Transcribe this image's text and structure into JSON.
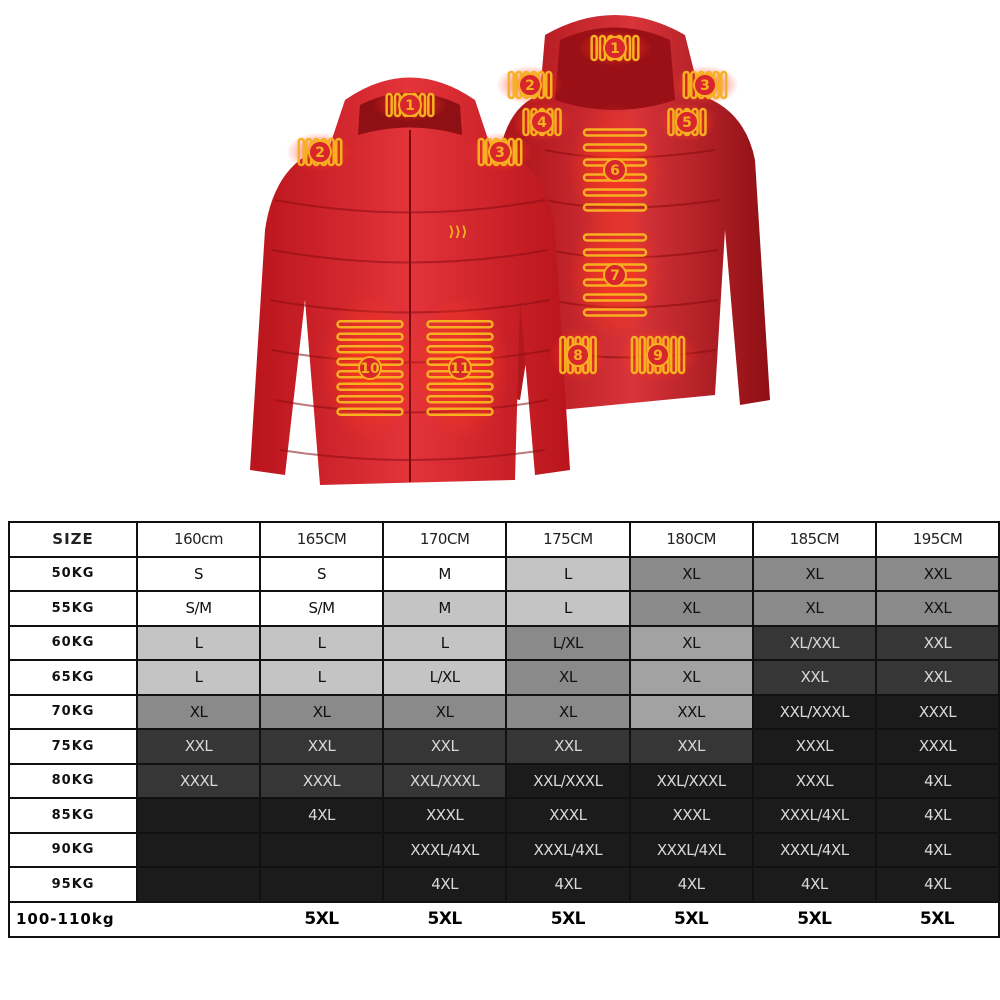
{
  "product_image": {
    "front_zone_labels": [
      "1",
      "2",
      "3",
      "10",
      "11"
    ],
    "back_zone_labels": [
      "1",
      "2",
      "3",
      "4",
      "5",
      "6",
      "7",
      "8",
      "9"
    ],
    "colors": {
      "jacket": "#d8262c",
      "heating_pad": "#f7b021",
      "pad_glow": "#ff3a1a"
    }
  },
  "size_chart": {
    "corner_label": "SIZE",
    "heights": [
      "160cm",
      "165CM",
      "170CM",
      "175CM",
      "180CM",
      "185CM",
      "195CM"
    ],
    "rows": [
      {
        "weight": "50KG",
        "sizes": [
          "S",
          "S",
          "M",
          "L",
          "XL",
          "XL",
          "XXL"
        ],
        "shades": [
          "w",
          "w",
          "w",
          "l",
          "m",
          "m",
          "m"
        ]
      },
      {
        "weight": "55KG",
        "sizes": [
          "S/M",
          "S/M",
          "M",
          "L",
          "XL",
          "XL",
          "XXL"
        ],
        "shades": [
          "w",
          "w",
          "l",
          "l",
          "m",
          "m",
          "m"
        ]
      },
      {
        "weight": "60KG",
        "sizes": [
          "L",
          "L",
          "L",
          "L/XL",
          "XL",
          "XL/XXL",
          "XXL"
        ],
        "shades": [
          "l",
          "l",
          "l",
          "m",
          "m2",
          "d",
          "d"
        ]
      },
      {
        "weight": "65KG",
        "sizes": [
          "L",
          "L",
          "L/XL",
          "XL",
          "XL",
          "XXL",
          "XXL"
        ],
        "shades": [
          "l",
          "l",
          "l",
          "m",
          "m2",
          "d",
          "d"
        ]
      },
      {
        "weight": "70KG",
        "sizes": [
          "XL",
          "XL",
          "XL",
          "XL",
          "XXL",
          "XXL/XXXL",
          "XXXL"
        ],
        "shades": [
          "m",
          "m",
          "m",
          "m",
          "m2",
          "k",
          "k"
        ]
      },
      {
        "weight": "75KG",
        "sizes": [
          "XXL",
          "XXL",
          "XXL",
          "XXL",
          "XXL",
          "XXXL",
          "XXXL"
        ],
        "shades": [
          "d",
          "d",
          "d",
          "d",
          "d",
          "k",
          "k"
        ]
      },
      {
        "weight": "80KG",
        "sizes": [
          "XXXL",
          "XXXL",
          "XXL/XXXL",
          "XXL/XXXL",
          "XXL/XXXL",
          "XXXL",
          "4XL"
        ],
        "shades": [
          "d",
          "d",
          "d",
          "k",
          "k",
          "k",
          "k"
        ]
      },
      {
        "weight": "85KG",
        "sizes": [
          "",
          "4XL",
          "XXXL",
          "XXXL",
          "XXXL",
          "XXXL/4XL",
          "4XL"
        ],
        "shades": [
          "k",
          "k",
          "k",
          "k",
          "k",
          "k",
          "k"
        ]
      },
      {
        "weight": "90KG",
        "sizes": [
          "",
          "",
          "XXXL/4XL",
          "XXXL/4XL",
          "XXXL/4XL",
          "XXXL/4XL",
          "4XL"
        ],
        "shades": [
          "k",
          "k",
          "k",
          "k",
          "k",
          "k",
          "k"
        ]
      },
      {
        "weight": "95KG",
        "sizes": [
          "",
          "",
          "4XL",
          "4XL",
          "4XL",
          "4XL",
          "4XL"
        ],
        "shades": [
          "k",
          "k",
          "k",
          "k",
          "k",
          "k",
          "k"
        ]
      }
    ],
    "last_row": {
      "weight": "100-110kg",
      "sizes": [
        "",
        "5XL",
        "5XL",
        "5XL",
        "5XL",
        "5XL",
        "5XL"
      ]
    }
  }
}
